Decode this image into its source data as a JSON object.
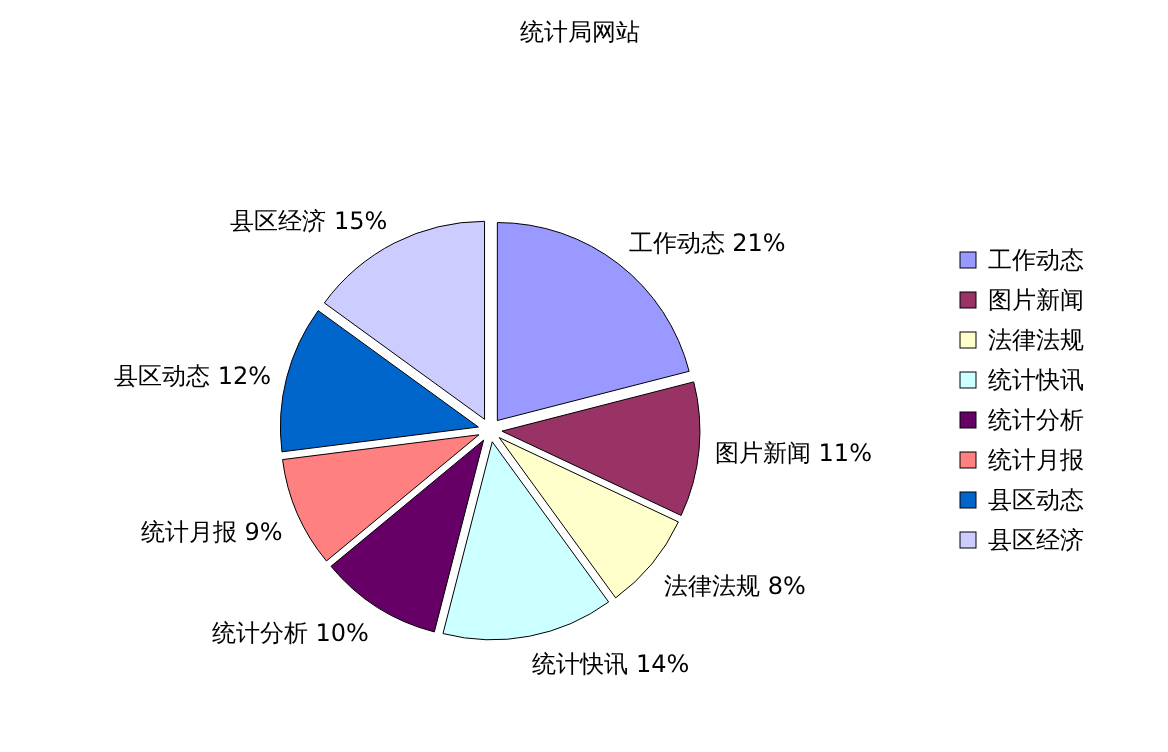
{
  "chart_data": {
    "type": "pie",
    "title": "统计局网站",
    "categories": [
      "工作动态",
      "图片新闻",
      "法律法规",
      "统计快讯",
      "统计分析",
      "统计月报",
      "县区动态",
      "县区经济"
    ],
    "values": [
      21,
      11,
      8,
      14,
      10,
      9,
      12,
      15
    ],
    "colors": [
      "#9999ff",
      "#993366",
      "#ffffcc",
      "#ccffff",
      "#660066",
      "#ff8080",
      "#0066cc",
      "#ccccff"
    ],
    "value_labels": [
      "21%",
      "11%",
      "8%",
      "14%",
      "10%",
      "9%",
      "12%",
      "15%"
    ],
    "legend": "right"
  }
}
